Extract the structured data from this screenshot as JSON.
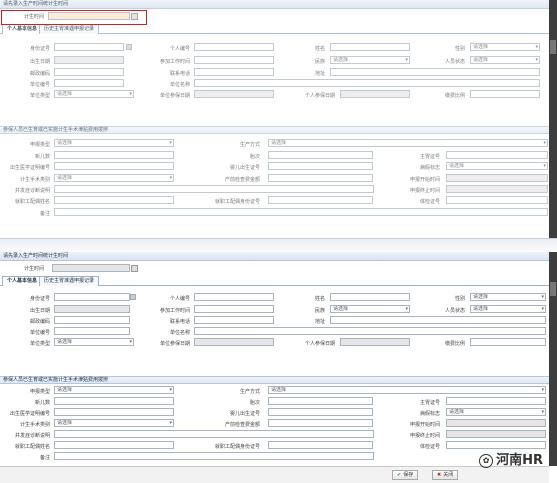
{
  "panel_title": "请先录入生产时间统计生时间",
  "plan_time_label": "计生时间",
  "tabs": [
    "个人基本信息",
    "历史主胃准遇申报记录"
  ],
  "fields1": {
    "id_label": "身份证号",
    "personal_no_label": "个人编号",
    "name_label": "姓名",
    "gender_label": "性别",
    "birth_label": "出生日期",
    "work_date_label": "参加工作时间",
    "nation_label": "民族",
    "person_status_label": "人员状态",
    "postcode_label": "邮政编码",
    "phone_label": "联系电话",
    "address_label": "地址",
    "unit_no_label": "单位编号",
    "unit_name_label": "单位名称",
    "unit_type_label": "单位类型",
    "unit_pay_date_label": "单位参保日期",
    "personal_pay_date_label": "个人参保日期",
    "pay_ratio_label": "缴费比例"
  },
  "select_placeholder": "请选择",
  "section2_title": "参保人员已生育或已实施计生手术津贴费用拨辨",
  "fields2": {
    "apply_type_label": "申报类型",
    "delivery_label": "生产方式",
    "newborn_label": "新儿数",
    "fetus_label": "胎次",
    "birth_cert_label": "主胃证号",
    "hospital_label": "出生医学证明编号",
    "baby_cert_label": "婴儿出生证号",
    "flag_label": "病假标志",
    "surgery_type_label": "计生手术类别",
    "preg_form_label": "产前检查费金额",
    "apply_start_label": "申报开始时间",
    "complication_label": "并发症诊断说明",
    "apply_end_label": "申报终止时间",
    "facility_label": "就职工配偶姓名",
    "facility_id_label": "就职工配偶身份证号",
    "body_cert_label": "体检证号",
    "remark_label": "备注"
  },
  "footer": {
    "confirm": "保存",
    "cancel": "关闭"
  },
  "watermark": "河南HR"
}
